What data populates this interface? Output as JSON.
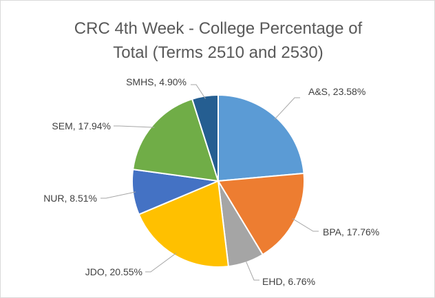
{
  "chart_data": {
    "type": "pie",
    "title": [
      "CRC 4th Week - College Percentage of",
      "Total (Terms 2510 and 2530)"
    ],
    "categories": [
      "A&S",
      "BPA",
      "EHD",
      "JDO",
      "NUR",
      "SEM",
      "SMHS"
    ],
    "values": [
      23.58,
      17.76,
      6.76,
      20.55,
      8.51,
      17.94,
      4.9
    ],
    "labels": [
      "A&S, 23.58%",
      "BPA, 17.76%",
      "EHD, 6.76%",
      "JDO, 20.55%",
      "NUR, 8.51%",
      "SEM, 17.94%",
      "SMHS, 4.90%"
    ],
    "colors": [
      "#5B9BD5",
      "#ED7D31",
      "#A5A5A5",
      "#FFC000",
      "#4472C4",
      "#70AD47",
      "#255E91"
    ],
    "start_angle": "top, clockwise",
    "legend": "none"
  }
}
